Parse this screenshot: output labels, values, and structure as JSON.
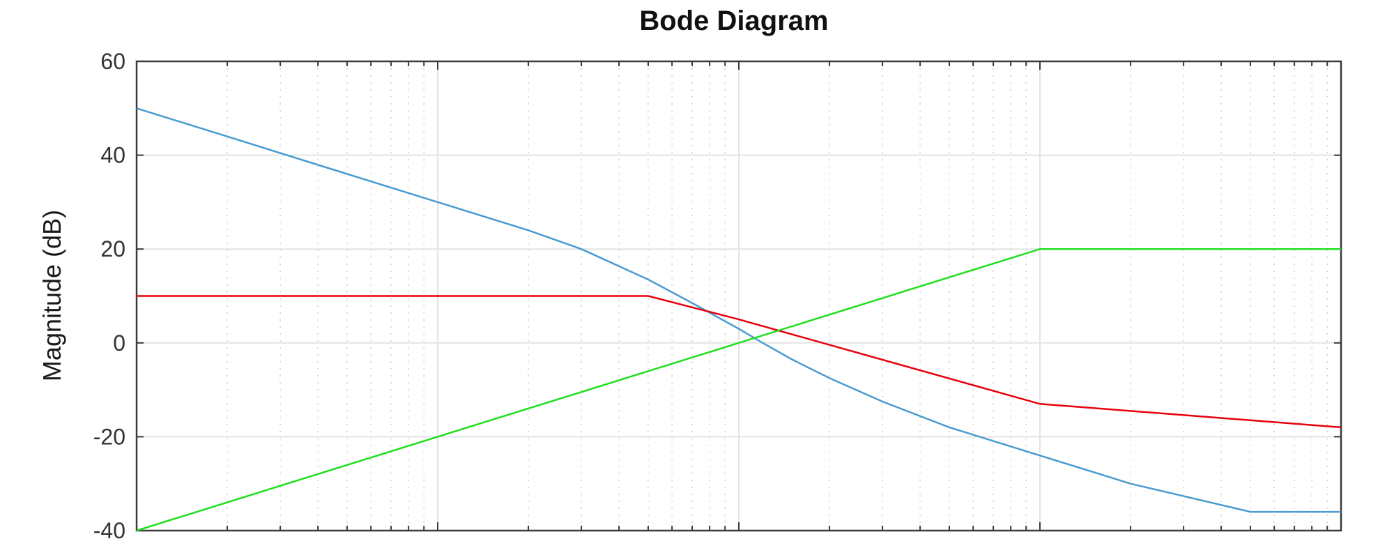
{
  "chart_data": {
    "type": "line",
    "title": "Bode Diagram",
    "xlabel": "",
    "ylabel": "Magnitude (dB)",
    "x_scale": "log",
    "xlim": [
      0.01,
      100
    ],
    "ylim": [
      -40,
      60
    ],
    "yticks": [
      -40,
      -20,
      0,
      20,
      40,
      60
    ],
    "y_tick_labels": [
      "-40",
      "-20",
      "0",
      "20",
      "40",
      "60"
    ],
    "grid": true,
    "series": [
      {
        "color": "#4a9bd1",
        "x": [
          0.01,
          0.02,
          0.05,
          0.1,
          0.2,
          0.3,
          0.5,
          0.7,
          1,
          1.2,
          1.5,
          2,
          3,
          5,
          10,
          20,
          50,
          100
        ],
        "y": [
          50,
          44,
          36,
          30,
          24,
          20,
          13.5,
          8.5,
          3,
          0,
          -3.5,
          -7.5,
          -12.5,
          -18,
          -24,
          -30,
          -36,
          -36
        ]
      },
      {
        "color": "#e8000b",
        "x": [
          0.01,
          0.5,
          1,
          10,
          100
        ],
        "y": [
          10,
          10,
          5,
          -13,
          -18
        ]
      },
      {
        "color": "#1ee01e",
        "x": [
          0.01,
          0.1,
          1,
          10,
          100
        ],
        "y": [
          -40,
          -20,
          0,
          20,
          20
        ]
      }
    ]
  }
}
